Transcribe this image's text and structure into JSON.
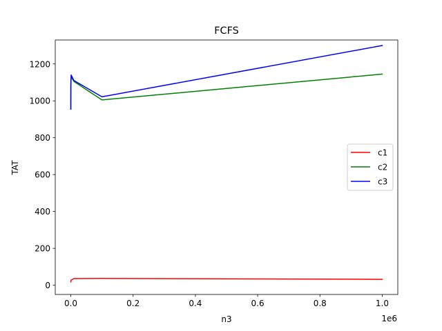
{
  "chart_data": {
    "type": "line",
    "title": "FCFS",
    "xlabel": "n3",
    "ylabel": "TAT",
    "x_offset_label": "1e6",
    "xlim": [
      -50000,
      1050000
    ],
    "ylim": [
      -50,
      1330
    ],
    "x_ticks": [
      0,
      200000,
      400000,
      600000,
      800000,
      1000000
    ],
    "x_tick_labels": [
      "0.0",
      "0.2",
      "0.4",
      "0.6",
      "0.8",
      "1.0"
    ],
    "y_ticks": [
      0,
      200,
      400,
      600,
      800,
      1000,
      1200
    ],
    "y_tick_labels": [
      "0",
      "200",
      "400",
      "600",
      "800",
      "1000",
      "1200"
    ],
    "grid": false,
    "legend_position": "center-right",
    "series": [
      {
        "name": "c1",
        "color": "#ff0000",
        "x": [
          1,
          10,
          100,
          1000,
          10000,
          100000,
          1000000
        ],
        "y": [
          18,
          20,
          22,
          28,
          36,
          37,
          32
        ]
      },
      {
        "name": "c2",
        "color": "#008000",
        "x": [
          1,
          10,
          100,
          1000,
          10000,
          100000,
          1000000
        ],
        "y": [
          955,
          1010,
          1075,
          1130,
          1105,
          1005,
          1145
        ]
      },
      {
        "name": "c3",
        "color": "#0000ff",
        "x": [
          1,
          10,
          100,
          1000,
          10000,
          100000,
          1000000
        ],
        "y": [
          955,
          1025,
          1095,
          1140,
          1110,
          1022,
          1300
        ]
      }
    ]
  }
}
